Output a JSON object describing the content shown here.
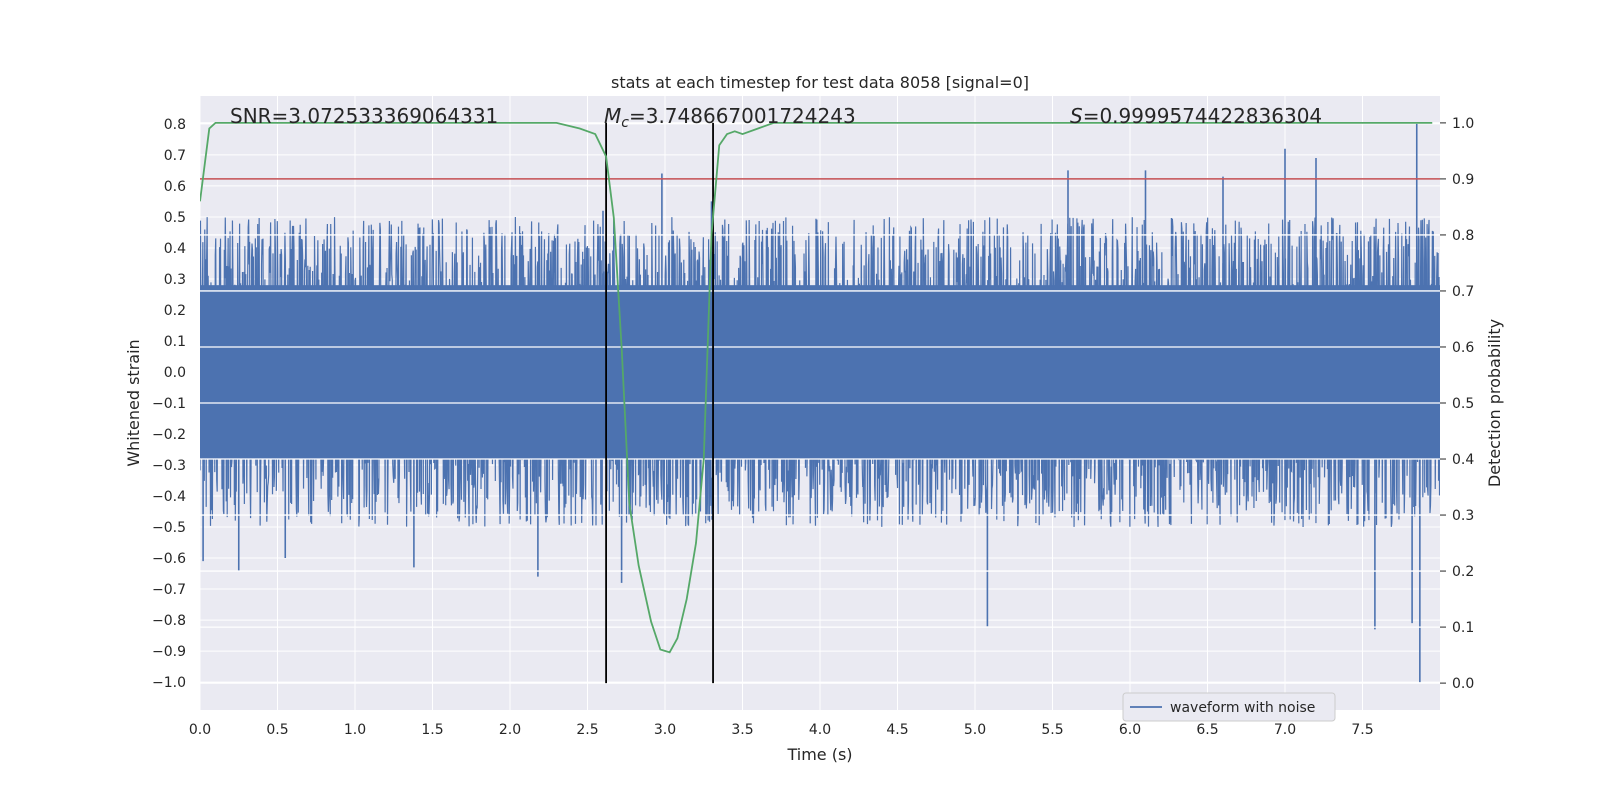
{
  "chart_data": {
    "type": "line",
    "title": "stats at each timestep for test data 8058 [signal=0]",
    "xlabel": "Time (s)",
    "ylabel": "Whitened strain",
    "y2label": "Detection probability",
    "xlim": [
      0.0,
      8.0
    ],
    "ylim": [
      -1.09,
      0.89
    ],
    "y2lim": [
      -0.048,
      1.048
    ],
    "xticks": [
      "0.0",
      "0.5",
      "1.0",
      "1.5",
      "2.0",
      "2.5",
      "3.0",
      "3.5",
      "4.0",
      "4.5",
      "5.0",
      "5.5",
      "6.0",
      "6.5",
      "7.0",
      "7.5"
    ],
    "yticks": [
      "0.8",
      "0.7",
      "0.6",
      "0.5",
      "0.4",
      "0.3",
      "0.2",
      "0.1",
      "0.0",
      "−0.1",
      "−0.2",
      "−0.3",
      "−0.4",
      "−0.5",
      "−0.6",
      "−0.7",
      "−0.8",
      "−0.9",
      "−1.0"
    ],
    "y2ticks": [
      "1.0",
      "0.9",
      "0.8",
      "0.7",
      "0.6",
      "0.5",
      "0.4",
      "0.3",
      "0.2",
      "0.1",
      "0.0"
    ],
    "grid": true,
    "legend_placement": "lower-right",
    "annotations": {
      "snr": "SNR=3.072533369064331",
      "mc_prefix": "M",
      "mc_sub": "c",
      "mc_value": "=3.748667001724243",
      "s_prefix": "S",
      "s_value": "=0.9999574422836304"
    },
    "vlines_x": [
      2.62,
      3.31
    ],
    "threshold_y2": 0.9,
    "series": [
      {
        "name": "waveform with noise",
        "color": "#4c72b0",
        "kind": "noise",
        "band": [
          -0.28,
          0.28
        ],
        "typical_peak": 0.5,
        "spikes": [
          [
            0.02,
            -0.61
          ],
          [
            0.25,
            -0.64
          ],
          [
            0.55,
            -0.6
          ],
          [
            1.38,
            -0.63
          ],
          [
            2.18,
            -0.66
          ],
          [
            2.6,
            0.52
          ],
          [
            2.72,
            -0.68
          ],
          [
            2.98,
            0.64
          ],
          [
            3.3,
            0.55
          ],
          [
            5.08,
            -0.82
          ],
          [
            5.6,
            0.65
          ],
          [
            6.1,
            0.65
          ],
          [
            6.6,
            0.63
          ],
          [
            7.0,
            0.72
          ],
          [
            7.2,
            0.69
          ],
          [
            7.58,
            -0.83
          ],
          [
            7.82,
            -0.81
          ],
          [
            7.85,
            0.8
          ],
          [
            7.87,
            -1.0
          ]
        ]
      },
      {
        "name": "detection probability",
        "color": "#55a868",
        "axis": "right",
        "x": [
          0.0,
          0.06,
          0.1,
          0.3,
          0.5,
          1.0,
          1.5,
          2.0,
          2.3,
          2.45,
          2.55,
          2.62,
          2.67,
          2.72,
          2.77,
          2.83,
          2.91,
          2.97,
          3.03,
          3.08,
          3.14,
          3.2,
          3.25,
          3.3,
          3.35,
          3.4,
          3.45,
          3.5,
          3.6,
          3.7,
          4.0,
          5.0,
          6.0,
          7.0,
          7.95
        ],
        "y": [
          0.86,
          0.99,
          1.0,
          1.0,
          1.0,
          1.0,
          1.0,
          1.0,
          1.0,
          0.99,
          0.98,
          0.94,
          0.83,
          0.6,
          0.32,
          0.21,
          0.11,
          0.06,
          0.055,
          0.08,
          0.15,
          0.25,
          0.4,
          0.8,
          0.96,
          0.98,
          0.985,
          0.98,
          0.99,
          1.0,
          1.0,
          1.0,
          1.0,
          1.0,
          1.0
        ]
      }
    ],
    "threshold_color": "#c44e52"
  }
}
